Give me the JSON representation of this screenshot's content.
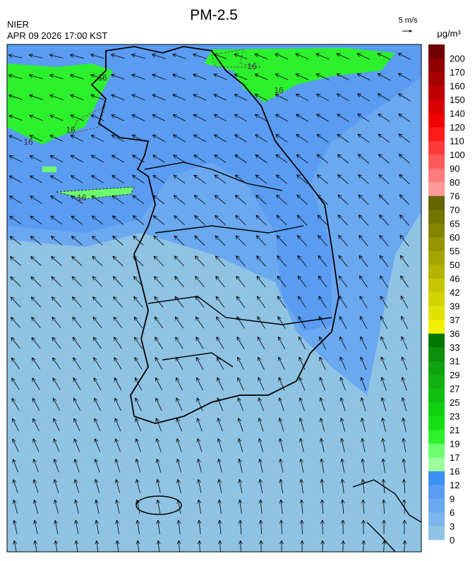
{
  "header": {
    "title": "PM-2.5",
    "agency": "NIER",
    "time": "APR 09 2026 17:00 KST",
    "wind_scale": "5 m/s",
    "unit": "μg/m³"
  },
  "colorbar": {
    "ticks": [
      0,
      3,
      6,
      9,
      12,
      16,
      17,
      19,
      21,
      23,
      25,
      27,
      29,
      31,
      33,
      36,
      37,
      39,
      42,
      46,
      50,
      55,
      60,
      65,
      70,
      76,
      80,
      90,
      100,
      110,
      120,
      140,
      150,
      160,
      170,
      200
    ],
    "colors": [
      "#8fc3e3",
      "#7db6ec",
      "#6aa8f0",
      "#5a9cf2",
      "#3c90f2",
      "#9cff9c",
      "#6cff6c",
      "#2cf02c",
      "#14e014",
      "#10d010",
      "#10c010",
      "#10b010",
      "#10a010",
      "#0c900c",
      "#007800",
      "#f0f000",
      "#e2e200",
      "#d4d400",
      "#c6c600",
      "#b4b400",
      "#a4a400",
      "#949400",
      "#848400",
      "#747400",
      "#646400",
      "#ff9a9a",
      "#ff7a7a",
      "#ff5a5a",
      "#ff3a3a",
      "#ff1a1a",
      "#f00000",
      "#d80000",
      "#c00000",
      "#a80000",
      "#900000",
      "#700000"
    ]
  },
  "map": {
    "contour_labels": [
      16,
      16,
      16,
      16,
      16,
      16
    ]
  }
}
